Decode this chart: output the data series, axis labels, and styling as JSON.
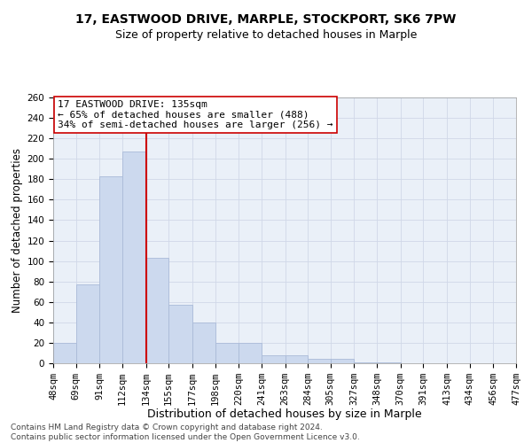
{
  "title_line1": "17, EASTWOOD DRIVE, MARPLE, STOCKPORT, SK6 7PW",
  "title_line2": "Size of property relative to detached houses in Marple",
  "xlabel": "Distribution of detached houses by size in Marple",
  "ylabel": "Number of detached properties",
  "footnote": "Contains HM Land Registry data © Crown copyright and database right 2024.\nContains public sector information licensed under the Open Government Licence v3.0.",
  "bar_edges": [
    48,
    69,
    91,
    112,
    134,
    155,
    177,
    198,
    220,
    241,
    263,
    284,
    305,
    327,
    348,
    370,
    391,
    413,
    434,
    456,
    477
  ],
  "bar_heights": [
    20,
    77,
    183,
    207,
    103,
    57,
    40,
    20,
    20,
    8,
    8,
    4,
    4,
    1,
    1,
    0,
    0,
    0,
    0,
    0
  ],
  "bar_color": "#ccd9ee",
  "bar_edgecolor": "#aabbd8",
  "vline_x": 134,
  "vline_color": "#cc0000",
  "vline_lw": 1.5,
  "annotation_text": "17 EASTWOOD DRIVE: 135sqm\n← 65% of detached houses are smaller (488)\n34% of semi-detached houses are larger (256) →",
  "annotation_box_color": "#ffffff",
  "annotation_box_edgecolor": "#cc0000",
  "annotation_fontsize": 8.0,
  "ylim": [
    0,
    260
  ],
  "yticks": [
    0,
    20,
    40,
    60,
    80,
    100,
    120,
    140,
    160,
    180,
    200,
    220,
    240,
    260
  ],
  "xtick_labels": [
    "48sqm",
    "69sqm",
    "91sqm",
    "112sqm",
    "134sqm",
    "155sqm",
    "177sqm",
    "198sqm",
    "220sqm",
    "241sqm",
    "263sqm",
    "284sqm",
    "305sqm",
    "327sqm",
    "348sqm",
    "370sqm",
    "391sqm",
    "413sqm",
    "434sqm",
    "456sqm",
    "477sqm"
  ],
  "grid_color": "#d0d8e8",
  "bg_color": "#eaf0f8",
  "title_fontsize": 10,
  "subtitle_fontsize": 9,
  "xlabel_fontsize": 9,
  "ylabel_fontsize": 8.5,
  "tick_fontsize": 7.5,
  "footnote_fontsize": 6.5
}
